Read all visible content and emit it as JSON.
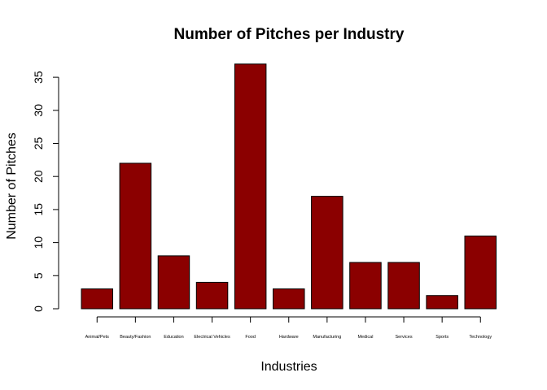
{
  "chart_data": {
    "type": "bar",
    "title": "Number of Pitches per Industry",
    "xlabel": "Industries",
    "ylabel": "Number of Pitches",
    "categories": [
      "Animal/Pets",
      "Beauty/Fashion",
      "Education",
      "Electrical Vehicles",
      "Food",
      "Hardware",
      "Manufacturing",
      "Medical",
      "Services",
      "Sports",
      "Technology"
    ],
    "values": [
      3,
      22,
      8,
      4,
      37,
      3,
      17,
      7,
      7,
      2,
      11
    ],
    "yticks": [
      0,
      5,
      10,
      15,
      20,
      25,
      30,
      35
    ],
    "ylim": [
      0,
      37
    ],
    "bar_color": "#8B0000",
    "bar_border_color": "#000000",
    "grid": false,
    "legend": "none"
  }
}
